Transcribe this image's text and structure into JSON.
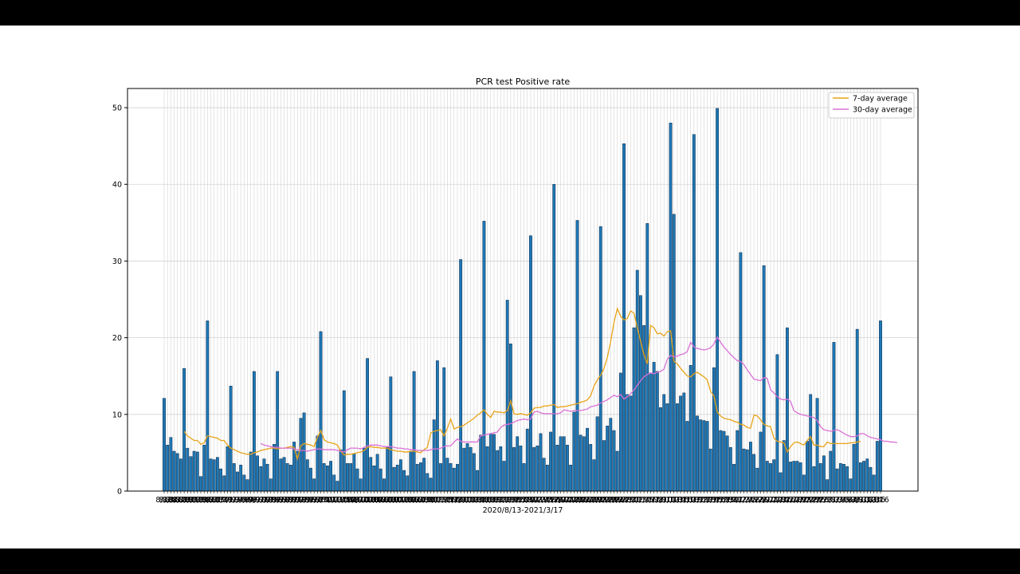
{
  "chart_data": {
    "type": "bar",
    "title": "PCR test Positive rate",
    "xlabel": "2020/8/13-2021/3/17",
    "ylabel": "",
    "ylim": [
      0,
      52.5
    ],
    "yticks": [
      0,
      10,
      20,
      30,
      40,
      50
    ],
    "grid": true,
    "legend_position": "top-right",
    "colors": {
      "bars": "#1f77b4",
      "avg7": "#e8a317",
      "avg30": "#da70d6",
      "grid": "#d3d3d3"
    },
    "x_start": "2020-08-13",
    "x_end": "2021-03-17",
    "values": [
      12.1,
      6.0,
      7.0,
      5.2,
      4.9,
      4.2,
      16.0,
      5.6,
      4.5,
      5.2,
      5.1,
      1.9,
      6.0,
      22.2,
      4.2,
      4.1,
      4.4,
      2.9,
      2.0,
      5.8,
      13.7,
      3.6,
      2.5,
      3.4,
      2.1,
      1.5,
      5.1,
      15.6,
      4.6,
      3.2,
      4.2,
      3.5,
      1.6,
      6.1,
      15.6,
      4.2,
      4.4,
      3.6,
      3.4,
      6.4,
      5.2,
      9.5,
      10.2,
      4.1,
      3.0,
      1.6,
      7.2,
      20.8,
      3.6,
      3.3,
      3.9,
      2.1,
      1.3,
      5.4,
      13.1,
      3.6,
      3.6,
      4.9,
      2.9,
      1.6,
      5.6,
      17.3,
      4.4,
      3.3,
      4.8,
      2.9,
      1.6,
      5.7,
      14.9,
      3.1,
      3.4,
      4.1,
      2.7,
      2.0,
      5.2,
      15.6,
      3.5,
      3.7,
      4.3,
      2.3,
      1.7,
      9.3,
      17.0,
      3.6,
      16.1,
      4.3,
      3.6,
      3.0,
      3.5,
      30.2,
      5.6,
      6.2,
      5.7,
      4.9,
      2.7,
      7.3,
      35.2,
      5.8,
      7.5,
      7.4,
      5.3,
      5.8,
      3.9,
      24.9,
      19.2,
      5.7,
      7.1,
      5.9,
      3.6,
      8.1,
      33.3,
      5.7,
      5.9,
      7.5,
      4.3,
      3.4,
      7.7,
      40.0,
      6.0,
      7.1,
      7.1,
      6.0,
      3.4,
      10.3,
      35.3,
      7.3,
      7.1,
      8.2,
      6.1,
      4.1,
      9.7,
      34.5,
      6.6,
      8.5,
      9.5,
      7.9,
      5.2,
      15.4,
      45.3,
      12.6,
      12.4,
      21.3,
      28.8,
      25.5,
      21.6,
      34.9,
      15.4,
      16.8,
      15.6,
      10.9,
      12.6,
      11.4,
      48.0,
      36.1,
      11.4,
      12.4,
      12.8,
      9.1,
      16.4,
      46.5,
      9.8,
      9.3,
      9.2,
      9.1,
      5.5,
      16.1,
      49.9,
      7.9,
      7.8,
      7.2,
      5.7,
      3.5,
      7.9,
      31.1,
      5.5,
      5.4,
      6.4,
      4.8,
      3.0,
      7.7,
      29.4,
      3.9,
      3.6,
      4.1,
      17.8,
      2.4,
      6.6,
      21.3,
      3.8,
      3.9,
      3.9,
      3.7,
      2.1,
      6.5,
      12.6,
      3.2,
      12.1,
      3.6,
      4.6,
      1.5,
      5.2,
      19.4,
      2.9,
      3.6,
      3.5,
      3.2,
      1.6,
      6.1,
      21.1,
      3.7,
      3.9,
      4.2,
      3.1,
      2.1,
      6.5,
      22.2
    ],
    "series": [
      {
        "name": "7-day average",
        "start_index": 6,
        "values": [
          7.8,
          7.2,
          6.9,
          6.6,
          6.6,
          6.1,
          6.3,
          7.2,
          7.1,
          7.0,
          6.9,
          6.6,
          6.6,
          6.0,
          5.6,
          5.4,
          5.2,
          5.0,
          4.9,
          4.8,
          4.8,
          5.0,
          5.1,
          5.3,
          5.4,
          5.5,
          5.6,
          5.6,
          5.5,
          5.6,
          5.6,
          5.7,
          5.8,
          5.7,
          4.2,
          5.9,
          6.2,
          6.1,
          6.0,
          5.8,
          7.0,
          7.9,
          6.7,
          6.4,
          6.3,
          6.2,
          6.0,
          5.2,
          4.7,
          4.8,
          4.8,
          4.9,
          5.0,
          5.1,
          5.3,
          5.7,
          5.8,
          5.7,
          5.7,
          5.6,
          5.6,
          5.6,
          5.4,
          5.3,
          5.2,
          5.2,
          5.1,
          5.1,
          5.2,
          5.2,
          5.1,
          5.0,
          5.4,
          5.7,
          7.6,
          7.8,
          7.9,
          8.0,
          7.2,
          8.2,
          9.4,
          8.1,
          8.3,
          8.4,
          8.6,
          8.9,
          9.2,
          9.5,
          9.9,
          10.2,
          10.6,
          10.0,
          9.6,
          10.4,
          10.3,
          10.3,
          10.2,
          10.5,
          11.8,
          10.1,
          10.0,
          10.1,
          10.0,
          9.9,
          10.2,
          10.8,
          10.9,
          10.9,
          11.1,
          11.1,
          11.2,
          11.3,
          10.9,
          11.0,
          11.0,
          11.1,
          11.2,
          11.3,
          11.4,
          11.6,
          11.7,
          11.9,
          12.4,
          13.7,
          14.5,
          15.1,
          16.0,
          17.4,
          19.5,
          22.0,
          23.8,
          22.8,
          22.3,
          22.5,
          23.5,
          23.2,
          21.3,
          19.5,
          17.8,
          16.6,
          21.6,
          21.3,
          20.5,
          20.6,
          20.2,
          20.8,
          20.9,
          16.9,
          16.6,
          16.0,
          15.5,
          15.0,
          14.9,
          15.3,
          15.5,
          15.2,
          14.9,
          14.5,
          13.0,
          12.4,
          10.3,
          9.8,
          9.5,
          9.4,
          9.3,
          9.1,
          9.0,
          8.7,
          8.6,
          8.3,
          8.2,
          9.9,
          9.8,
          9.3,
          8.7,
          8.5,
          8.4,
          6.9,
          6.5,
          6.4,
          6.3,
          5.1,
          5.8,
          6.3,
          6.4,
          6.2,
          6.0,
          6.6,
          7.1,
          6.0,
          6.0,
          5.8,
          5.8,
          6.4,
          6.2,
          6.2,
          6.2,
          6.2,
          6.2,
          6.2,
          6.3,
          6.3,
          6.4,
          6.5
        ]
      },
      {
        "name": "30-day average",
        "start_index": 29,
        "values": [
          6.2,
          6.0,
          5.9,
          5.8,
          5.7,
          5.7,
          5.6,
          5.6,
          5.6,
          5.6,
          5.5,
          5.4,
          5.3,
          5.3,
          5.2,
          5.3,
          5.4,
          5.5,
          5.5,
          5.4,
          5.4,
          5.4,
          5.4,
          5.3,
          5.2,
          5.1,
          5.4,
          5.6,
          5.6,
          5.6,
          5.5,
          5.7,
          5.9,
          6.0,
          6.0,
          6.0,
          5.9,
          5.8,
          5.8,
          5.8,
          5.7,
          5.6,
          5.6,
          5.5,
          5.5,
          5.4,
          5.4,
          5.3,
          5.3,
          5.3,
          5.3,
          5.4,
          5.5,
          5.5,
          5.6,
          5.8,
          5.9,
          5.9,
          6.4,
          6.8,
          6.5,
          6.4,
          6.4,
          6.4,
          6.4,
          6.4,
          7.2,
          7.3,
          7.4,
          7.5,
          7.6,
          7.7,
          8.3,
          8.6,
          8.7,
          8.8,
          9.0,
          9.2,
          9.3,
          9.4,
          9.3,
          9.4,
          10.3,
          10.4,
          10.2,
          10.1,
          10.1,
          10.1,
          10.1,
          10.1,
          10.2,
          10.6,
          10.5,
          10.4,
          10.5,
          10.5,
          10.5,
          10.6,
          10.7,
          11.0,
          11.1,
          11.2,
          11.5,
          11.7,
          11.9,
          12.2,
          12.5,
          12.3,
          12.6,
          12.0,
          12.3,
          12.7,
          13.2,
          13.8,
          14.4,
          14.9,
          15.2,
          15.4,
          15.3,
          15.5,
          15.6,
          15.9,
          17.2,
          17.7,
          17.5,
          17.6,
          17.8,
          17.9,
          18.2,
          19.4,
          18.8,
          18.6,
          18.5,
          18.4,
          18.5,
          18.7,
          19.2,
          20.1,
          19.4,
          18.8,
          18.3,
          17.8,
          17.4,
          17.0,
          16.9,
          16.5,
          15.8,
          15.2,
          14.6,
          14.5,
          14.4,
          14.8,
          14.7,
          13.2,
          12.8,
          12.3,
          12.0,
          11.9,
          12.0,
          11.7,
          10.5,
          10.2,
          10.0,
          9.9,
          9.8,
          9.7,
          9.6,
          9.2,
          8.4,
          8.0,
          7.9,
          7.8,
          7.9,
          8.0,
          7.8,
          7.5,
          7.3,
          7.1,
          7.1,
          7.2,
          7.5,
          7.5,
          7.2,
          7.0,
          6.9,
          6.8,
          6.7,
          6.5,
          6.5,
          6.4,
          6.4,
          6.3
        ]
      }
    ]
  }
}
